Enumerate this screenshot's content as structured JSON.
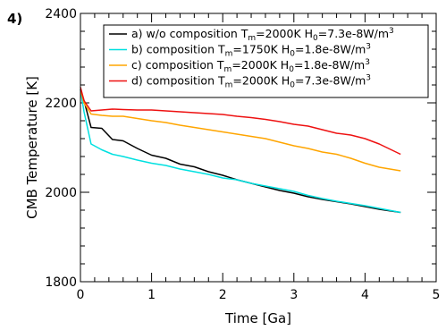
{
  "panel_label": "4)",
  "chart_data": {
    "type": "line",
    "xlabel": "Time [Ga]",
    "ylabel": "CMB Temperature [K]",
    "xlim": [
      0,
      5
    ],
    "ylim": [
      1800,
      2400
    ],
    "xticks": [
      0,
      1,
      2,
      3,
      4,
      5
    ],
    "yticks": [
      1800,
      2000,
      2200,
      2400
    ],
    "grid": false,
    "legend_position": "top-right",
    "series": [
      {
        "legend": {
          "prefix": "a) w/o composition",
          "t_label": "T",
          "t_sub": "m",
          "t_value": "=2000K",
          "h_label": "H",
          "h_sub": "0",
          "h_value": "=7.3e-8W/m",
          "h_sup": "3"
        },
        "color": "#000000",
        "x": [
          0,
          0.05,
          0.15,
          0.3,
          0.45,
          0.6,
          0.8,
          1.0,
          1.2,
          1.4,
          1.6,
          1.8,
          2.0,
          2.2,
          2.4,
          2.6,
          2.8,
          3.0,
          3.2,
          3.4,
          3.6,
          3.8,
          4.0,
          4.2,
          4.5
        ],
        "y": [
          2230,
          2205,
          2145,
          2143,
          2118,
          2115,
          2098,
          2083,
          2076,
          2063,
          2057,
          2046,
          2038,
          2028,
          2020,
          2012,
          2004,
          1998,
          1990,
          1984,
          1979,
          1974,
          1968,
          1962,
          1955
        ]
      },
      {
        "legend": {
          "prefix": "b) composition",
          "t_label": "T",
          "t_sub": "m",
          "t_value": "=1750K",
          "h_label": "H",
          "h_sub": "0",
          "h_value": "=1.8e-8W/m",
          "h_sup": "3"
        },
        "color": "#00e0e0",
        "x": [
          0,
          0.05,
          0.15,
          0.3,
          0.45,
          0.6,
          0.8,
          1.0,
          1.2,
          1.4,
          1.6,
          1.8,
          2.0,
          2.2,
          2.4,
          2.6,
          2.8,
          3.0,
          3.2,
          3.4,
          3.6,
          3.8,
          4.0,
          4.2,
          4.5
        ],
        "y": [
          2230,
          2180,
          2108,
          2095,
          2085,
          2080,
          2072,
          2065,
          2060,
          2052,
          2046,
          2040,
          2032,
          2028,
          2020,
          2014,
          2008,
          2002,
          1993,
          1986,
          1980,
          1975,
          1970,
          1964,
          1955
        ]
      },
      {
        "legend": {
          "prefix": "c) composition",
          "t_label": "T",
          "t_sub": "m",
          "t_value": "=2000K",
          "h_label": "H",
          "h_sub": "0",
          "h_value": "=1.8e-8W/m",
          "h_sup": "3"
        },
        "color": "#ffa500",
        "x": [
          0,
          0.05,
          0.15,
          0.3,
          0.45,
          0.6,
          0.8,
          1.0,
          1.2,
          1.4,
          1.6,
          1.8,
          2.0,
          2.2,
          2.4,
          2.6,
          2.8,
          3.0,
          3.2,
          3.4,
          3.6,
          3.8,
          4.0,
          4.2,
          4.5
        ],
        "y": [
          2230,
          2200,
          2175,
          2172,
          2170,
          2170,
          2165,
          2160,
          2156,
          2150,
          2145,
          2140,
          2135,
          2130,
          2125,
          2120,
          2112,
          2104,
          2098,
          2090,
          2085,
          2076,
          2065,
          2056,
          2048
        ]
      },
      {
        "legend": {
          "prefix": "d) composition",
          "t_label": "T",
          "t_sub": "m",
          "t_value": "=2000K",
          "h_label": "H",
          "h_sub": "0",
          "h_value": "=7.3e-8W/m",
          "h_sup": "3"
        },
        "color": "#ee1111",
        "x": [
          0,
          0.05,
          0.15,
          0.3,
          0.45,
          0.6,
          0.8,
          1.0,
          1.2,
          1.4,
          1.6,
          1.8,
          2.0,
          2.2,
          2.4,
          2.6,
          2.8,
          3.0,
          3.2,
          3.4,
          3.6,
          3.8,
          4.0,
          4.2,
          4.5
        ],
        "y": [
          2235,
          2205,
          2182,
          2184,
          2186,
          2185,
          2184,
          2184,
          2182,
          2180,
          2178,
          2176,
          2174,
          2170,
          2167,
          2163,
          2158,
          2152,
          2148,
          2140,
          2132,
          2128,
          2120,
          2108,
          2085
        ]
      }
    ]
  }
}
